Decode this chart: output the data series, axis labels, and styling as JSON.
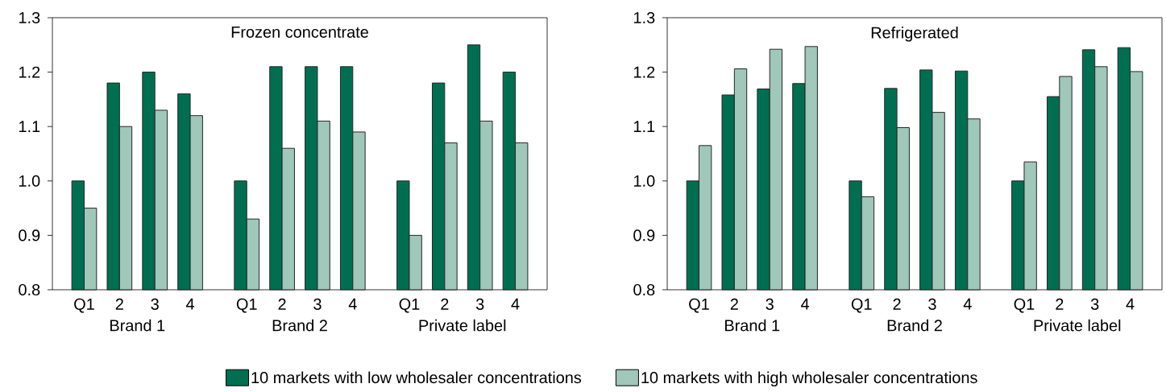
{
  "chart_data": [
    {
      "type": "bar",
      "title": "Frozen concentrate",
      "categories": [
        "Q1",
        "2",
        "3",
        "4",
        "Q1",
        "2",
        "3",
        "4",
        "Q1",
        "2",
        "3",
        "4"
      ],
      "annotations": [
        "Brand 1",
        "Brand 2",
        "Private label"
      ],
      "series": [
        {
          "name": "10 markets with low wholesaler concentrations",
          "color": "#006f51",
          "values": [
            1.0,
            1.18,
            1.2,
            1.16,
            1.0,
            1.21,
            1.21,
            1.21,
            1.0,
            1.18,
            1.25,
            1.2
          ]
        },
        {
          "name": "10 markets with high wholesaler concentrations",
          "color": "#9fc7ba",
          "values": [
            0.95,
            1.1,
            1.13,
            1.12,
            0.93,
            1.06,
            1.11,
            1.09,
            0.9,
            1.07,
            1.11,
            1.07
          ]
        }
      ],
      "ylim": [
        0.8,
        1.3
      ],
      "yticks": [
        0.8,
        0.9,
        {
          "value": 1.0,
          "label": "1.0"
        },
        1.1,
        1.2,
        1.3
      ],
      "legend": "bottom"
    },
    {
      "type": "bar",
      "title": "Refrigerated",
      "categories": [
        "Q1",
        "2",
        "3",
        "4",
        "Q1",
        "2",
        "3",
        "4",
        "Q1",
        "2",
        "3",
        "4"
      ],
      "annotations": [
        "Brand 1",
        "Brand 2",
        "Private label"
      ],
      "series": [
        {
          "color": "#006f51",
          "values": [
            1.0,
            1.158,
            1.169,
            1.179,
            1.0,
            1.17,
            1.204,
            1.202,
            1.0,
            1.155,
            1.241,
            1.245
          ]
        },
        {
          "color": "#9fc7ba",
          "values": [
            1.065,
            1.206,
            1.242,
            1.247,
            0.971,
            1.098,
            1.126,
            1.114,
            1.035,
            1.192,
            1.21,
            1.201
          ]
        }
      ],
      "ylim": [
        0.8,
        1.3
      ],
      "yticks": [
        0.8,
        0.9,
        {
          "value": 1.0,
          "label": "1.0"
        },
        1.1,
        1.2,
        1.3
      ]
    }
  ]
}
